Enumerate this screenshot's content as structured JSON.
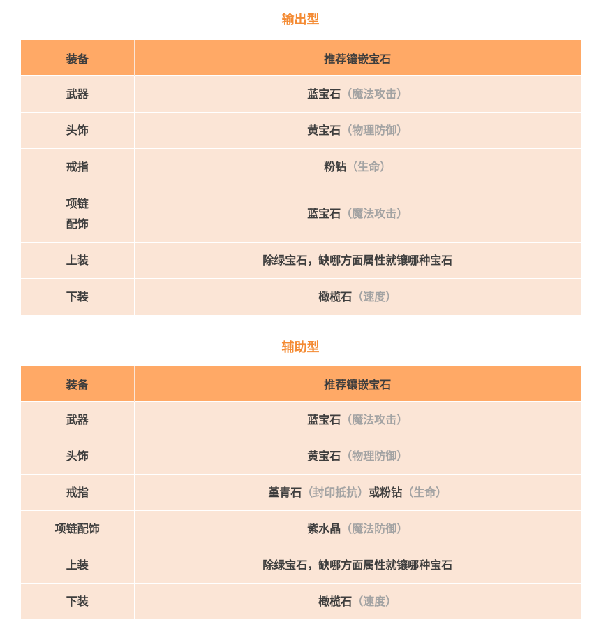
{
  "sections": [
    {
      "title": "输出型",
      "headers": [
        "装备",
        "推荐镶嵌宝石"
      ],
      "rows": [
        {
          "equip": [
            "武器"
          ],
          "gem": [
            {
              "text": "蓝宝石",
              "muted": false
            },
            {
              "text": "（魔法攻击）",
              "muted": true
            }
          ]
        },
        {
          "equip": [
            "头饰"
          ],
          "gem": [
            {
              "text": "黄宝石",
              "muted": false
            },
            {
              "text": "（物理防御）",
              "muted": true
            }
          ]
        },
        {
          "equip": [
            "戒指"
          ],
          "gem": [
            {
              "text": "粉钻",
              "muted": false
            },
            {
              "text": "（生命）",
              "muted": true
            }
          ]
        },
        {
          "equip": [
            "项链",
            "配饰"
          ],
          "gem": [
            {
              "text": "蓝宝石",
              "muted": false
            },
            {
              "text": "（魔法攻击）",
              "muted": true
            }
          ]
        },
        {
          "equip": [
            "上装"
          ],
          "gem": [
            {
              "text": "除绿宝石，缺哪方面属性就镶哪种宝石",
              "muted": false
            }
          ]
        },
        {
          "equip": [
            "下装"
          ],
          "gem": [
            {
              "text": "橄榄石",
              "muted": false
            },
            {
              "text": "（速度）",
              "muted": true
            }
          ]
        }
      ]
    },
    {
      "title": "辅助型",
      "headers": [
        "装备",
        "推荐镶嵌宝石"
      ],
      "rows": [
        {
          "equip": [
            "武器"
          ],
          "gem": [
            {
              "text": "蓝宝石",
              "muted": false
            },
            {
              "text": "（魔法攻击）",
              "muted": true
            }
          ]
        },
        {
          "equip": [
            "头饰"
          ],
          "gem": [
            {
              "text": "黄宝石",
              "muted": false
            },
            {
              "text": "（物理防御）",
              "muted": true
            }
          ]
        },
        {
          "equip": [
            "戒指"
          ],
          "gem": [
            {
              "text": "堇青石",
              "muted": false
            },
            {
              "text": "（封印抵抗）",
              "muted": true
            },
            {
              "text": "或粉钻",
              "muted": false
            },
            {
              "text": "（生命）",
              "muted": true
            }
          ]
        },
        {
          "equip": [
            "项链配饰"
          ],
          "gem": [
            {
              "text": "紫水晶",
              "muted": false
            },
            {
              "text": "（魔法防御）",
              "muted": true
            }
          ]
        },
        {
          "equip": [
            "上装"
          ],
          "gem": [
            {
              "text": "除绿宝石，缺哪方面属性就镶哪种宝石",
              "muted": false
            }
          ]
        },
        {
          "equip": [
            "下装"
          ],
          "gem": [
            {
              "text": "橄榄石",
              "muted": false
            },
            {
              "text": "（速度）",
              "muted": true
            }
          ]
        }
      ]
    }
  ],
  "colors": {
    "title": "#f48a32",
    "header_bg": "#ffa966",
    "row_bg": "#fbe5d6",
    "text": "#3d3d3d",
    "muted": "#a3a3a3"
  }
}
